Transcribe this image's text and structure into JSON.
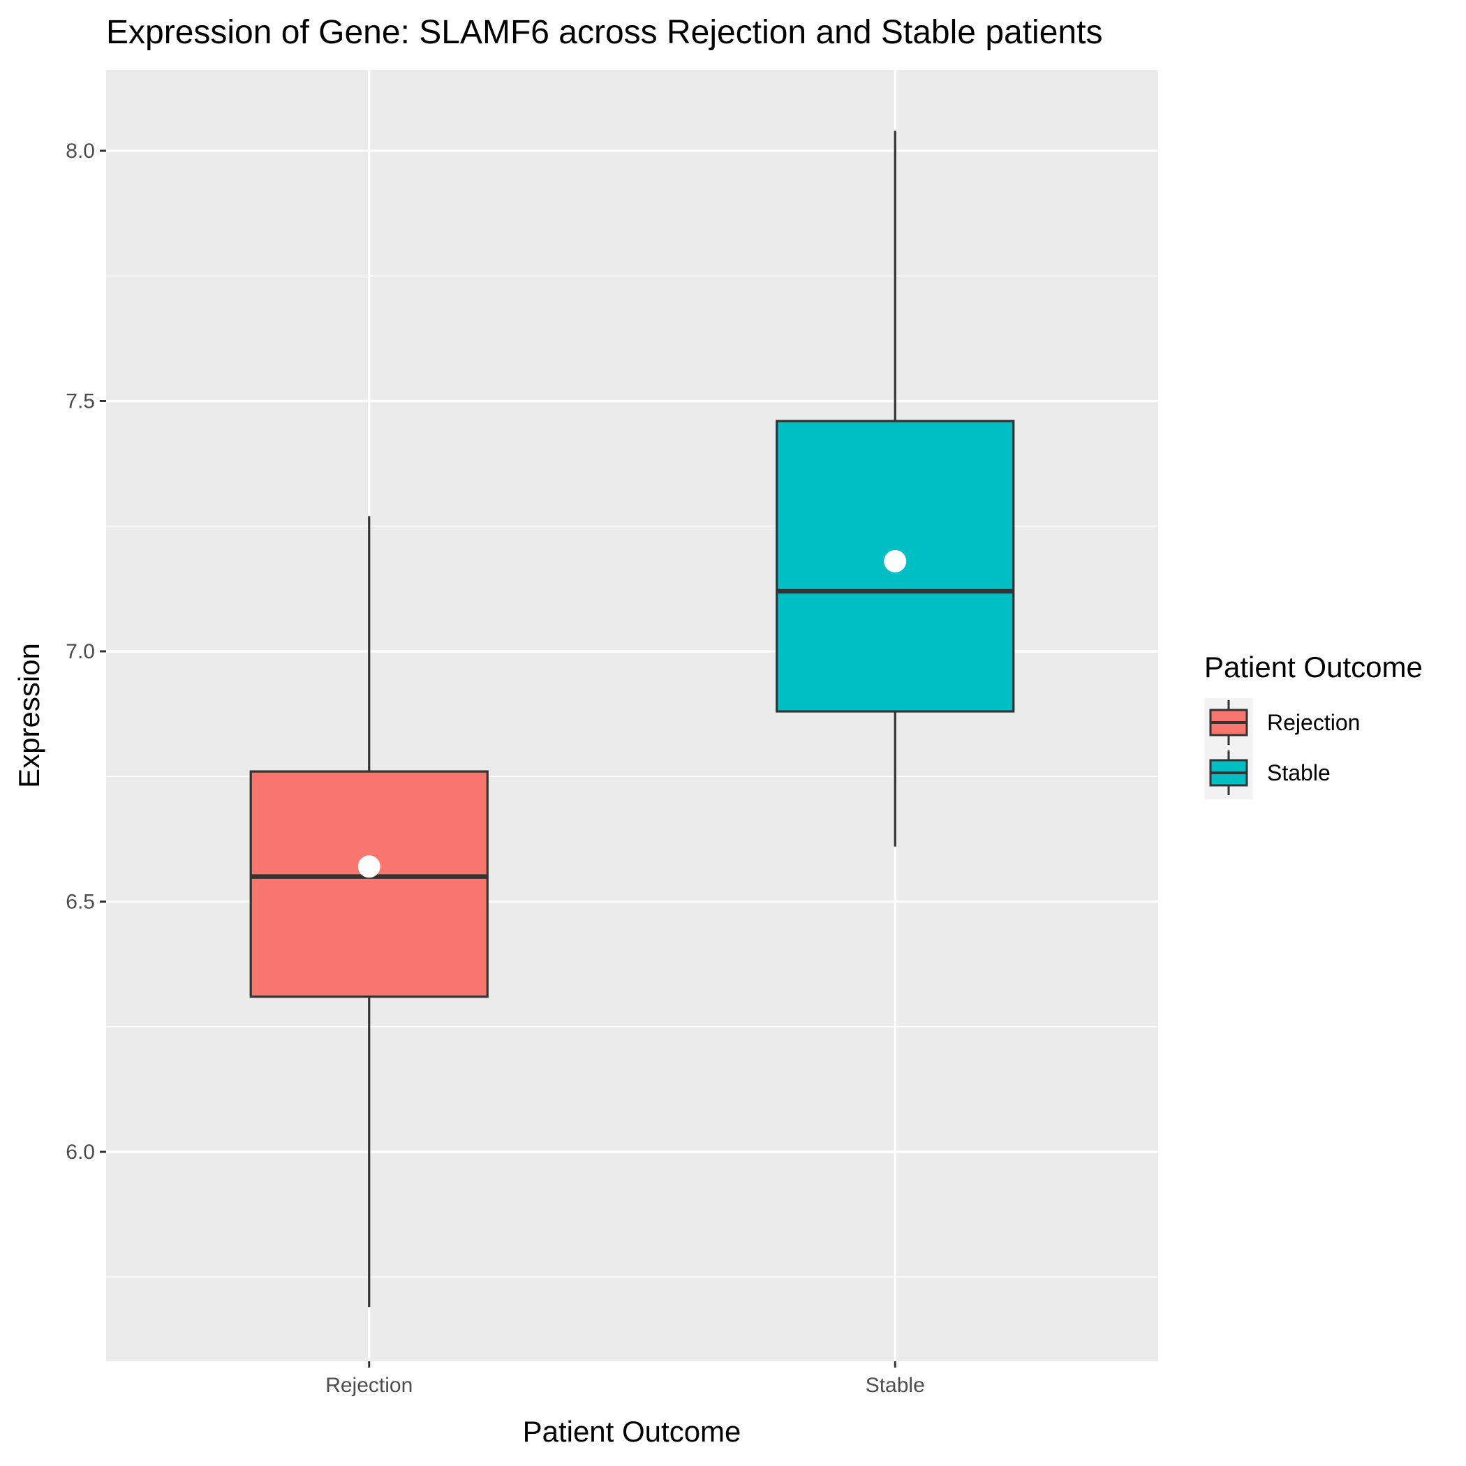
{
  "chart_data": {
    "type": "box",
    "title": "Expression of Gene: SLAMF6 across Rejection and Stable patients",
    "xlabel": "Patient Outcome",
    "ylabel": "Expression",
    "ylim": [
      5.47,
      8.15
    ],
    "y_ticks": [
      6.0,
      6.5,
      7.0,
      7.5,
      8.0
    ],
    "y_tick_labels": [
      "6.0",
      "6.5",
      "7.0",
      "7.5",
      "8.0"
    ],
    "categories": [
      "Rejection",
      "Stable"
    ],
    "grid": true,
    "legend": {
      "title": "Patient Outcome",
      "position": "right",
      "entries": [
        "Rejection",
        "Stable"
      ]
    },
    "series": [
      {
        "name": "Rejection",
        "color": "#F8766D",
        "whisker_low": 5.69,
        "q1": 6.31,
        "median": 6.55,
        "q3": 6.76,
        "whisker_high": 7.27,
        "mean": 6.57
      },
      {
        "name": "Stable",
        "color": "#00BFC4",
        "whisker_low": 6.61,
        "q1": 6.88,
        "median": 7.12,
        "q3": 7.46,
        "whisker_high": 8.04,
        "mean": 7.18
      }
    ]
  }
}
